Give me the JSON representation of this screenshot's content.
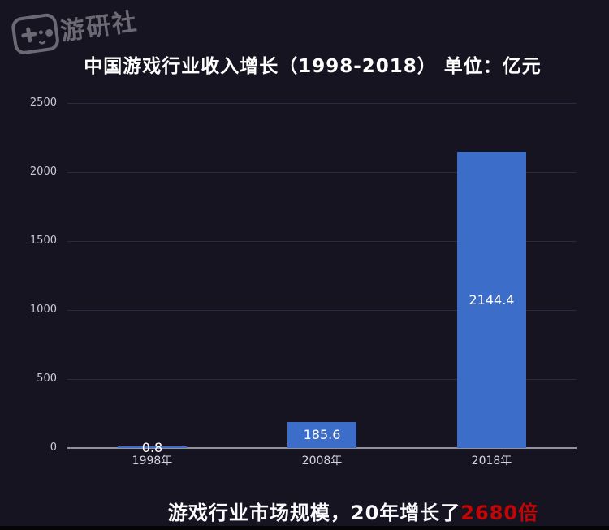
{
  "page": {
    "background_color": "#171421",
    "bottom_strip_color": "#050407"
  },
  "logo": {
    "text": "游研社",
    "icon": "game-controller-icon",
    "color": "#6c6975"
  },
  "chart_data": {
    "type": "bar",
    "title": "中国游戏行业收入增长（1998-2018） 单位：亿元",
    "categories": [
      "1998年",
      "2008年",
      "2018年"
    ],
    "values": [
      0.8,
      185.6,
      2144.4
    ],
    "value_labels": [
      "0.8",
      "185.6",
      "2144.4"
    ],
    "xlabel": "",
    "ylabel": "",
    "ylim": [
      0,
      2500
    ],
    "yticks": [
      0,
      500,
      1000,
      1500,
      2000,
      2500
    ],
    "grid": "horizontal",
    "legend": "none",
    "bar_color": "#3b6dc9",
    "value_label_color": "#ffffff"
  },
  "caption": {
    "prefix": "游戏行业市场规模，20年增长了",
    "highlight": "2680倍",
    "highlight_color": "#c30505"
  }
}
